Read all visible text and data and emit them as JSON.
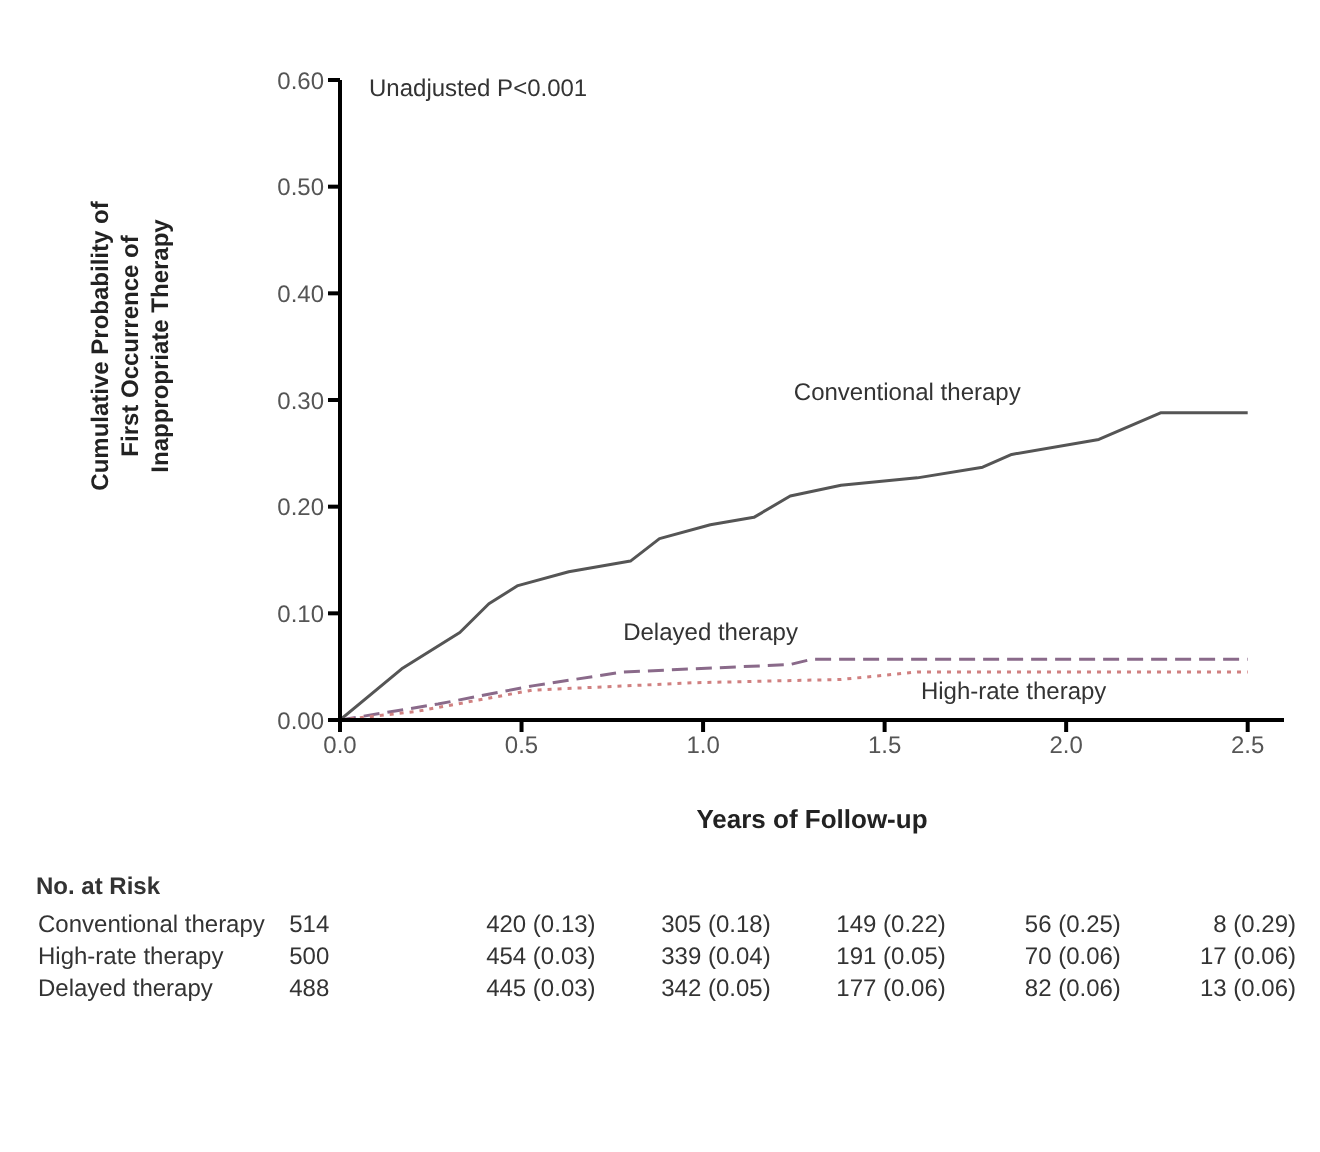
{
  "chart_data": {
    "type": "line",
    "xlabel": "Years of Follow-up",
    "ylabel": "Cumulative Probability of First Occurrence of Inappropriate Therapy",
    "xlim": [
      0,
      2.6
    ],
    "xticks": [
      {
        "value": 0,
        "label": "0.0"
      },
      {
        "value": 0.5,
        "label": "0.5"
      },
      {
        "value": 1,
        "label": "1.0"
      },
      {
        "value": 1.5,
        "label": "1.5"
      },
      {
        "value": 2,
        "label": "2.0"
      },
      {
        "value": 2.5,
        "label": "2.5"
      }
    ],
    "ylim": [
      0,
      0.6
    ],
    "yticks": [
      {
        "value": 0,
        "label": "0.00"
      },
      {
        "value": 0.1,
        "label": "0.10"
      },
      {
        "value": 0.2,
        "label": "0.20"
      },
      {
        "value": 0.3,
        "label": "0.30"
      },
      {
        "value": 0.4,
        "label": "0.40"
      },
      {
        "value": 0.5,
        "label": "0.50"
      },
      {
        "value": 0.6,
        "label": "0.60"
      }
    ],
    "grid": false,
    "legend": false,
    "series": [
      {
        "name": "Conventional therapy",
        "color": "#555555",
        "line_style": "solid",
        "x": [
          0,
          0.17,
          0.33,
          0.41,
          0.49,
          0.63,
          0.8,
          0.88,
          1.02,
          1.14,
          1.24,
          1.38,
          1.59,
          1.77,
          1.85,
          2.09,
          2.26,
          2.5
        ],
        "values": [
          0,
          0.048,
          0.082,
          0.109,
          0.126,
          0.139,
          0.149,
          0.17,
          0.183,
          0.19,
          0.21,
          0.22,
          0.227,
          0.237,
          0.249,
          0.263,
          0.288,
          0.288
        ]
      },
      {
        "name": "Delayed therapy",
        "color": "#8a6a8a",
        "line_style": "dashed",
        "x": [
          0,
          0.27,
          0.53,
          0.78,
          1.24,
          1.3,
          2.5
        ],
        "values": [
          0,
          0.015,
          0.032,
          0.045,
          0.052,
          0.057,
          0.057
        ]
      },
      {
        "name": "High-rate therapy",
        "color": "#d08080",
        "line_style": "dotted",
        "x": [
          0,
          0.21,
          0.53,
          0.98,
          1.38,
          1.59,
          2.5
        ],
        "values": [
          0,
          0.008,
          0.028,
          0.035,
          0.038,
          0.045,
          0.045
        ]
      }
    ],
    "annotations": [
      "Unadjusted P<0.001",
      "No. at Risk",
      "Conventional therapy",
      "514",
      "420 (0.13)",
      "305 (0.18)",
      "149 (0.22)",
      "56 (0.25)",
      "8 (0.29)",
      "High-rate therapy",
      "500",
      "454 (0.03)",
      "339 (0.04)",
      "191 (0.05)",
      "70 (0.06)",
      "17 (0.06)",
      "Delayed therapy",
      "488",
      "445 (0.03)",
      "342 (0.05)",
      "177 (0.06)",
      "82 (0.06)",
      "13 (0.06)"
    ]
  }
}
